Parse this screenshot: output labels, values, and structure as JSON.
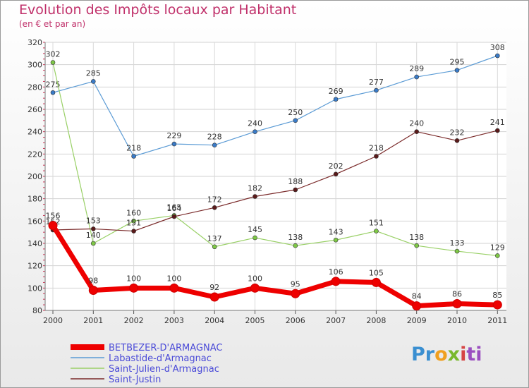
{
  "chart_data": {
    "type": "line",
    "title": "Evolution des Impôts locaux par Habitant",
    "subtitle": "(en € et par an)",
    "xlabel": "",
    "ylabel": "",
    "categories": [
      "2000",
      "2001",
      "2002",
      "2003",
      "2004",
      "2005",
      "2006",
      "2007",
      "2008",
      "2009",
      "2010",
      "2011"
    ],
    "ylim": [
      80,
      320
    ],
    "yticks": [
      80,
      100,
      120,
      140,
      160,
      180,
      200,
      220,
      240,
      260,
      280,
      300,
      320
    ],
    "grid": true,
    "legend_position": "bottom-left",
    "series": [
      {
        "name": "BETBEZER-D'ARMAGNAC",
        "color": "#ee0000",
        "marker": "#ee0000",
        "highlight": true,
        "values": [
          156,
          98,
          100,
          100,
          92,
          100,
          95,
          106,
          105,
          84,
          86,
          85
        ]
      },
      {
        "name": "Labastide-d'Armagnac",
        "color": "#5b9bd5",
        "marker": "#3a7bc8",
        "values": [
          275,
          285,
          218,
          229,
          228,
          240,
          250,
          269,
          277,
          289,
          295,
          308
        ]
      },
      {
        "name": "Saint-Julien-d'Armagnac",
        "color": "#99d066",
        "marker": "#7ec846",
        "values": [
          302,
          140,
          160,
          165,
          137,
          145,
          138,
          143,
          151,
          138,
          133,
          129
        ]
      },
      {
        "name": "Saint-Justin",
        "color": "#7a2a2a",
        "marker": "#5a1a1a",
        "values": [
          152,
          153,
          151,
          164,
          172,
          182,
          188,
          202,
          218,
          240,
          232,
          241
        ]
      }
    ]
  },
  "logo": {
    "p1": "Pr",
    "p2": "o",
    "p3": "x",
    "p4": "i",
    "p5": "ti"
  }
}
